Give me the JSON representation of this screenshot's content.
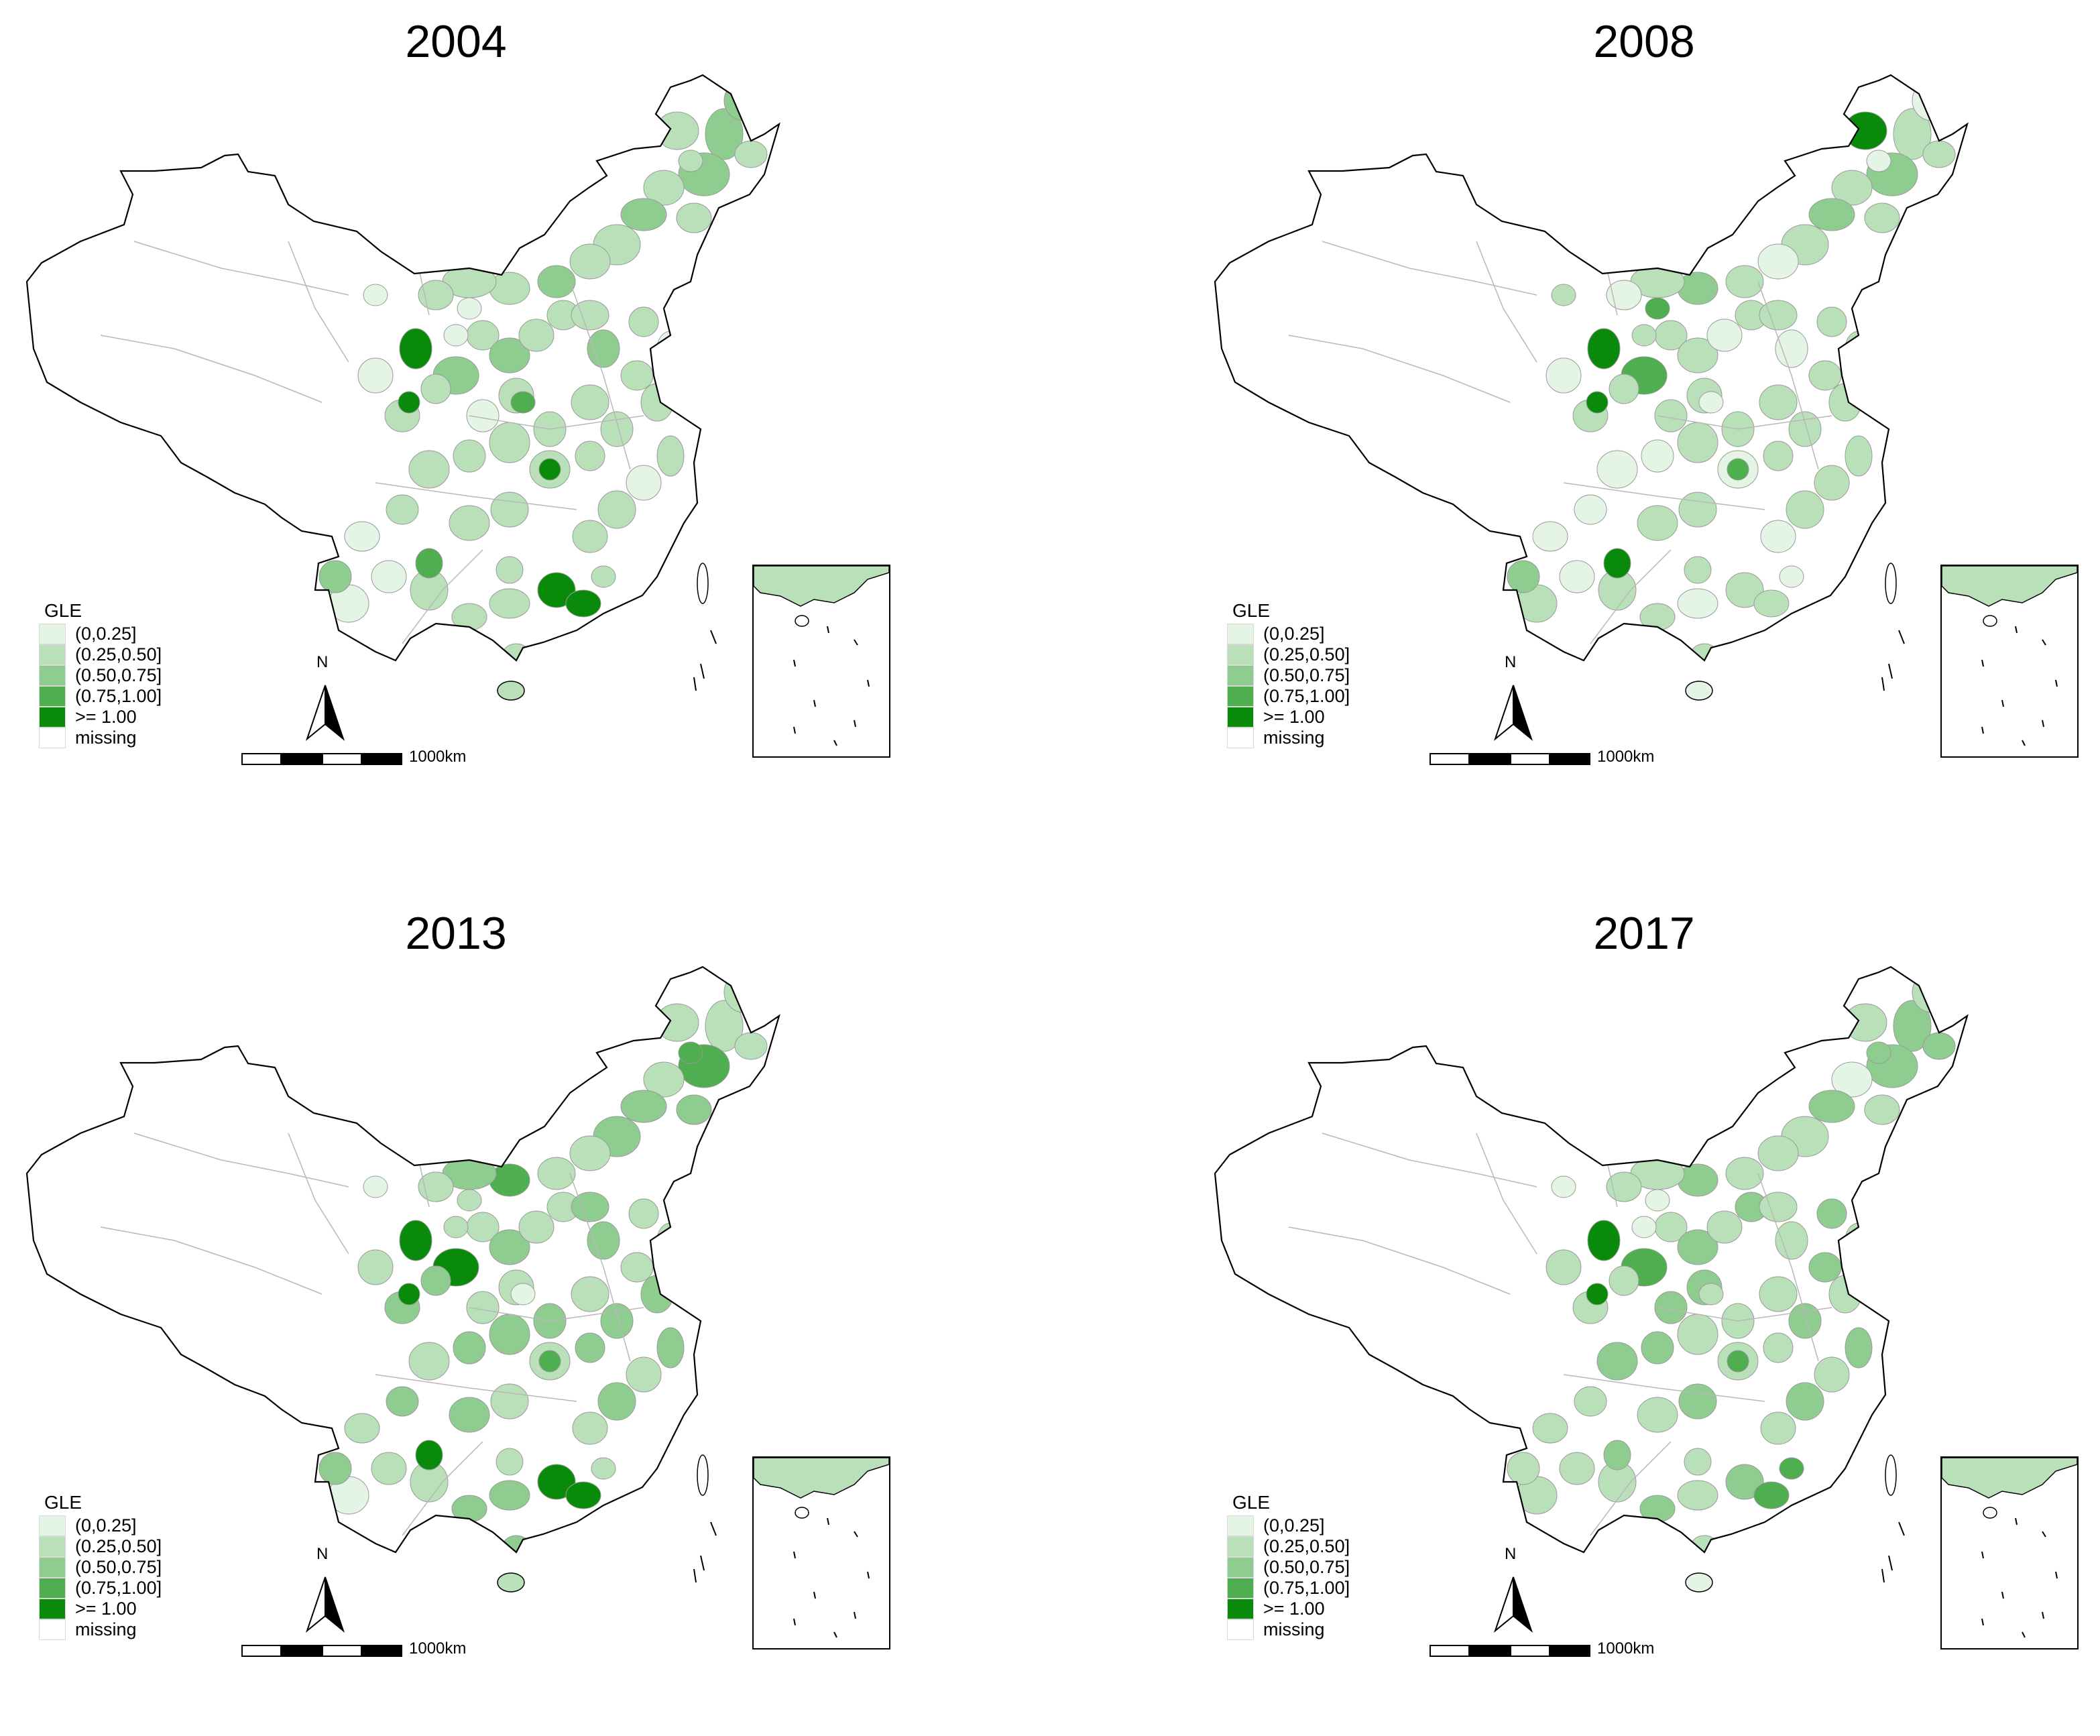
{
  "colors": {
    "c0": "#e5f5e5",
    "c1": "#b9e0b9",
    "c2": "#8fcc8f",
    "c3": "#4fae4f",
    "c4": "#0a8a0a",
    "missing": "#ffffff",
    "boundary": "#9a9a9a",
    "outline": "#000000"
  },
  "legend": {
    "title": "GLE",
    "items": [
      {
        "label": "(0,0.25]",
        "color": "#e5f5e5"
      },
      {
        "label": "(0.25,0.50]",
        "color": "#b9e0b9"
      },
      {
        "label": "(0.50,0.75]",
        "color": "#8fcc8f"
      },
      {
        "label": "(0.75,1.00]",
        "color": "#4fae4f"
      },
      {
        "label": ">= 1.00",
        "color": "#0a8a0a"
      },
      {
        "label": "missing",
        "color": "#ffffff"
      }
    ]
  },
  "north_label": "N",
  "scale_label": "1000km",
  "maps": [
    {
      "title": "2004"
    },
    {
      "title": "2008"
    },
    {
      "title": "2013"
    },
    {
      "title": "2017"
    }
  ]
}
